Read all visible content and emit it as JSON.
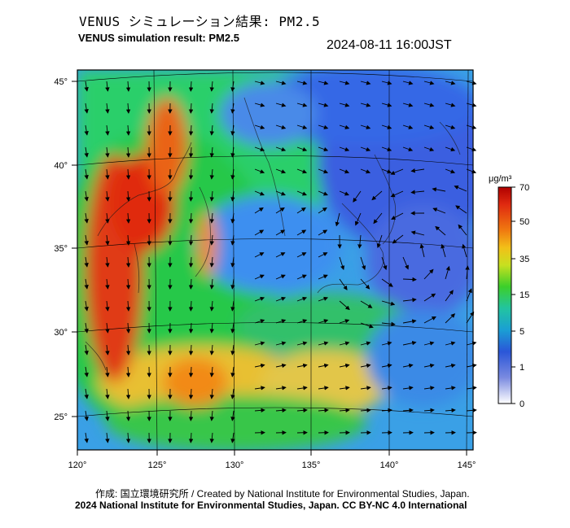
{
  "header": {
    "title_jp": "VENUS シミュレーション結果: PM2.5",
    "title_en": "VENUS simulation result: PM2.5",
    "timestamp": "2024-08-11 16:00JST"
  },
  "map": {
    "lon_labels": [
      "120°",
      "125°",
      "130°",
      "135°",
      "140°",
      "145°"
    ],
    "lat_labels": [
      "45°",
      "40°",
      "35°",
      "30°",
      "25°"
    ],
    "land_color": "#1ec83a",
    "ocean_color": "#3aa0e6"
  },
  "colorbar": {
    "unit": "μg/m³",
    "labels": [
      "70",
      "50",
      "35",
      "15",
      "5",
      "1",
      "0"
    ],
    "colors": [
      "#d01010",
      "#f07a10",
      "#f2c018",
      "#3ccf2a",
      "#1a9fd4",
      "#2a56d8",
      "#ffffff"
    ]
  },
  "footer": {
    "credit_jp_en": "作成: 国立環境研究所 / Created by National Institute for Environmental Studies, Japan.",
    "license": "2024 National Institute for Environmental Studies, Japan. CC BY-NC 4.0 International"
  }
}
